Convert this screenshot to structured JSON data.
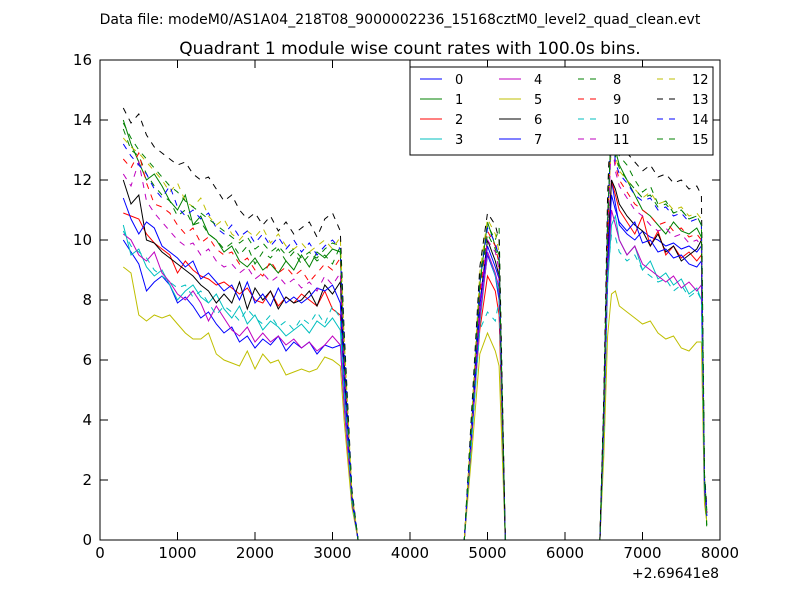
{
  "suptitle": "Data file: modeM0/AS1A04_218T08_9000002236_15168cztM0_level2_quad_clean.evt",
  "chart_data": {
    "type": "line",
    "title": "Quadrant 1 module wise count rates with 100.0s bins.",
    "xlabel": "",
    "ylabel": "",
    "xlim": [
      0,
      8000
    ],
    "ylim": [
      0,
      16
    ],
    "x_offset_label": "+2.69641e8",
    "xticks": [
      0,
      1000,
      2000,
      3000,
      4000,
      5000,
      6000,
      7000,
      8000
    ],
    "yticks": [
      0,
      2,
      4,
      6,
      8,
      10,
      12,
      14,
      16
    ],
    "legend_position": "top-right",
    "legend_columns": 4,
    "x": [
      300,
      400,
      500,
      600,
      700,
      800,
      900,
      1000,
      1100,
      1200,
      1300,
      1400,
      1500,
      1600,
      1700,
      1800,
      1900,
      2000,
      2100,
      2200,
      2300,
      2400,
      2500,
      2600,
      2700,
      2800,
      2900,
      3000,
      3100,
      3150,
      3250,
      3330,
      3400,
      3500,
      4700,
      4800,
      4900,
      5000,
      5100,
      5150,
      5230,
      5300,
      6450,
      6500,
      6550,
      6600,
      6650,
      6700,
      6800,
      6900,
      7000,
      7100,
      7200,
      7300,
      7400,
      7500,
      7600,
      7700,
      7760,
      7800,
      7830
    ],
    "series": [
      {
        "name": "0",
        "color": "#0000ff",
        "dash": "solid",
        "values": [
          10.0,
          9.6,
          9.2,
          8.3,
          8.6,
          8.8,
          8.5,
          7.9,
          8.1,
          7.8,
          7.4,
          7.6,
          7.2,
          6.9,
          7.1,
          6.6,
          6.8,
          6.4,
          6.7,
          6.5,
          6.8,
          6.3,
          6.6,
          6.4,
          6.6,
          6.2,
          6.5,
          6.4,
          6.5,
          4.5,
          1.3,
          0,
          0,
          0,
          0,
          3.5,
          7.5,
          9.5,
          8.8,
          8.0,
          0,
          0,
          0,
          3.5,
          9.0,
          12.0,
          11.2,
          10.5,
          10.2,
          10.0,
          10.3,
          10.1,
          10.0,
          9.8,
          9.9,
          9.7,
          9.8,
          9.6,
          9.8,
          2.0,
          0.8
        ]
      },
      {
        "name": "1",
        "color": "#008000",
        "dash": "solid",
        "values": [
          14.0,
          13.2,
          12.6,
          12.0,
          12.2,
          11.8,
          11.3,
          11.0,
          11.5,
          10.5,
          10.8,
          10.2,
          10.0,
          9.6,
          9.8,
          9.3,
          9.1,
          9.4,
          9.0,
          9.2,
          8.9,
          9.3,
          9.0,
          9.5,
          9.1,
          9.6,
          9.4,
          9.7,
          9.6,
          6.0,
          1.5,
          0,
          0,
          0,
          0,
          4.0,
          8.5,
          10.6,
          9.8,
          9.5,
          0,
          0,
          0,
          4.5,
          10.5,
          14.0,
          13.0,
          12.5,
          12.0,
          11.5,
          11.0,
          10.8,
          10.5,
          10.2,
          10.6,
          10.3,
          10.2,
          10.4,
          10.1,
          2.0,
          0.5
        ]
      },
      {
        "name": "2",
        "color": "#ff0000",
        "dash": "solid",
        "values": [
          10.9,
          10.8,
          10.7,
          10.2,
          9.9,
          9.7,
          9.5,
          8.9,
          9.3,
          9.0,
          8.8,
          8.7,
          8.5,
          8.6,
          8.4,
          8.2,
          8.4,
          8.0,
          7.9,
          8.3,
          7.8,
          8.1,
          7.9,
          8.2,
          8.0,
          7.8,
          8.3,
          7.7,
          7.5,
          5.0,
          1.4,
          0,
          0,
          0,
          0,
          3.8,
          7.0,
          8.8,
          8.3,
          7.5,
          0,
          0,
          0,
          3.8,
          9.5,
          12.0,
          11.5,
          11.0,
          10.6,
          10.2,
          10.8,
          9.8,
          10.3,
          9.5,
          9.8,
          9.4,
          9.6,
          9.3,
          9.5,
          1.8,
          0.9
        ]
      },
      {
        "name": "3",
        "color": "#00bfbf",
        "dash": "solid",
        "values": [
          10.5,
          9.5,
          9.7,
          9.1,
          8.8,
          9.0,
          8.5,
          8.0,
          8.3,
          8.5,
          8.1,
          7.9,
          8.2,
          7.7,
          7.4,
          7.8,
          7.2,
          7.5,
          7.0,
          7.3,
          7.1,
          6.8,
          7.0,
          7.2,
          6.9,
          7.3,
          7.1,
          7.4,
          7.0,
          4.8,
          1.2,
          0,
          0,
          0,
          0,
          3.6,
          7.2,
          9.6,
          8.8,
          8.2,
          0,
          0,
          0,
          3.5,
          8.5,
          10.5,
          10.8,
          10.0,
          9.5,
          9.8,
          9.0,
          9.3,
          8.7,
          8.9,
          8.5,
          8.7,
          8.2,
          8.4,
          8.0,
          1.6,
          0.9
        ]
      },
      {
        "name": "4",
        "color": "#bf00bf",
        "dash": "solid",
        "values": [
          10.2,
          10.0,
          9.5,
          9.3,
          9.6,
          8.9,
          8.6,
          8.2,
          8.0,
          8.3,
          7.9,
          7.3,
          7.8,
          7.4,
          7.0,
          6.8,
          7.1,
          6.6,
          6.9,
          6.6,
          6.8,
          6.5,
          6.7,
          6.4,
          6.6,
          6.3,
          6.5,
          6.8,
          6.5,
          4.5,
          1.2,
          0,
          0,
          0,
          0,
          3.6,
          7.4,
          9.6,
          8.9,
          8.4,
          0,
          0,
          0,
          3.5,
          8.8,
          11.0,
          10.5,
          10.0,
          9.5,
          9.8,
          9.2,
          9.0,
          8.8,
          8.6,
          8.8,
          8.4,
          8.6,
          8.3,
          8.5,
          1.6,
          0.9
        ]
      },
      {
        "name": "5",
        "color": "#bfbf00",
        "dash": "solid",
        "values": [
          9.1,
          8.9,
          7.5,
          7.3,
          7.5,
          7.4,
          7.5,
          7.2,
          6.9,
          6.7,
          6.7,
          6.9,
          6.2,
          6.0,
          5.9,
          5.8,
          6.3,
          5.7,
          6.2,
          5.9,
          6.0,
          5.5,
          5.6,
          5.7,
          5.6,
          5.7,
          6.1,
          6.0,
          5.8,
          4.0,
          1.1,
          0,
          0,
          0,
          0,
          3.0,
          6.2,
          6.9,
          6.3,
          5.8,
          0,
          0,
          0,
          2.8,
          6.8,
          8.2,
          8.3,
          7.8,
          7.6,
          7.4,
          7.2,
          7.3,
          6.9,
          6.7,
          6.8,
          6.4,
          6.3,
          6.6,
          6.6,
          1.2,
          0.6
        ]
      },
      {
        "name": "6",
        "color": "#000000",
        "dash": "solid",
        "values": [
          12.0,
          11.2,
          11.5,
          10.0,
          9.9,
          9.6,
          9.4,
          9.2,
          9.0,
          8.8,
          8.5,
          8.3,
          7.9,
          8.2,
          7.9,
          8.6,
          7.7,
          8.4,
          8.0,
          8.3,
          7.7,
          8.1,
          7.9,
          8.0,
          8.3,
          7.8,
          8.5,
          8.2,
          8.6,
          5.8,
          1.4,
          0,
          0,
          0,
          0,
          3.8,
          7.9,
          10.0,
          9.3,
          8.8,
          0,
          0,
          0,
          4.0,
          9.5,
          12.0,
          11.7,
          11.2,
          10.8,
          10.5,
          10.3,
          9.8,
          10.2,
          9.6,
          9.8,
          9.3,
          9.5,
          9.7,
          10.0,
          1.8,
          0.9
        ]
      },
      {
        "name": "7",
        "color": "#0000ff",
        "dash": "solid",
        "values": [
          11.4,
          10.7,
          10.2,
          10.6,
          10.4,
          9.8,
          9.6,
          9.4,
          9.1,
          9.3,
          8.7,
          8.9,
          8.6,
          8.3,
          8.5,
          8.0,
          8.6,
          7.9,
          8.2,
          7.8,
          8.4,
          7.9,
          8.1,
          7.9,
          8.1,
          8.4,
          8.3,
          8.5,
          7.9,
          5.4,
          1.3,
          0,
          0,
          0,
          0,
          3.7,
          7.8,
          9.8,
          9.1,
          8.7,
          0,
          0,
          0,
          3.9,
          9.2,
          11.5,
          11.0,
          10.6,
          10.3,
          10.6,
          9.9,
          10.0,
          9.6,
          9.7,
          9.4,
          9.5,
          9.2,
          9.1,
          9.3,
          1.7,
          0.8
        ]
      },
      {
        "name": "8",
        "color": "#008000",
        "dash": "dashed",
        "values": [
          13.7,
          13.0,
          12.8,
          12.2,
          11.8,
          11.5,
          11.3,
          10.8,
          11.0,
          10.5,
          10.6,
          10.2,
          10.0,
          9.7,
          9.9,
          9.5,
          9.8,
          9.2,
          9.6,
          9.4,
          9.7,
          9.3,
          9.6,
          9.2,
          9.5,
          9.4,
          9.7,
          9.9,
          9.8,
          6.5,
          1.6,
          0,
          0,
          0,
          0,
          4.2,
          8.8,
          10.5,
          10.0,
          10.4,
          0,
          0,
          0,
          4.5,
          11.0,
          14.5,
          13.3,
          12.8,
          12.5,
          12.0,
          11.6,
          11.8,
          11.2,
          11.3,
          10.9,
          11.0,
          10.7,
          10.8,
          10.5,
          2.1,
          1.0
        ]
      },
      {
        "name": "9",
        "color": "#ff0000",
        "dash": "dashed",
        "values": [
          12.7,
          12.4,
          12.9,
          11.9,
          11.2,
          11.1,
          10.9,
          10.5,
          10.2,
          10.4,
          9.9,
          10.1,
          9.7,
          9.5,
          9.6,
          9.2,
          9.4,
          9.0,
          8.8,
          9.3,
          8.9,
          9.1,
          8.8,
          9.0,
          8.6,
          8.9,
          9.2,
          9.0,
          9.4,
          6.2,
          1.5,
          0,
          0,
          0,
          0,
          4.0,
          8.2,
          10.3,
          9.8,
          9.2,
          0,
          0,
          0,
          4.2,
          10.2,
          13.8,
          12.5,
          12.0,
          11.6,
          11.2,
          11.0,
          10.8,
          10.5,
          10.6,
          10.3,
          10.4,
          10.1,
          10.2,
          10.0,
          2.0,
          1.0
        ]
      },
      {
        "name": "10",
        "color": "#00bfbf",
        "dash": "dashed",
        "values": [
          10.3,
          9.8,
          9.6,
          9.4,
          9.0,
          8.8,
          8.6,
          8.4,
          8.5,
          8.1,
          8.3,
          7.9,
          7.5,
          7.8,
          7.6,
          7.3,
          7.7,
          7.4,
          7.2,
          7.5,
          7.1,
          7.3,
          7.0,
          7.4,
          7.2,
          7.6,
          7.2,
          7.8,
          7.4,
          5.0,
          1.3,
          0,
          0,
          0,
          0,
          3.5,
          7.0,
          7.6,
          7.3,
          8.0,
          0,
          0,
          0,
          3.4,
          8.8,
          10.2,
          10.1,
          9.6,
          9.3,
          9.5,
          9.0,
          8.8,
          8.6,
          8.7,
          8.3,
          8.5,
          8.1,
          8.3,
          8.0,
          1.6,
          0.8
        ]
      },
      {
        "name": "11",
        "color": "#bf00bf",
        "dash": "dashed",
        "values": [
          12.2,
          11.8,
          12.6,
          11.3,
          10.9,
          10.6,
          10.3,
          10.0,
          9.8,
          9.9,
          9.5,
          9.7,
          9.3,
          9.1,
          9.2,
          8.9,
          9.1,
          8.7,
          8.9,
          8.6,
          8.8,
          8.5,
          8.7,
          8.4,
          8.6,
          8.3,
          8.8,
          8.5,
          8.9,
          6.0,
          1.4,
          0,
          0,
          0,
          0,
          3.9,
          8.0,
          10.0,
          9.6,
          9.0,
          0,
          0,
          0,
          4.1,
          10.0,
          13.5,
          12.3,
          11.8,
          11.4,
          11.0,
          10.8,
          10.5,
          10.3,
          10.4,
          10.1,
          10.2,
          9.9,
          10.0,
          9.8,
          1.9,
          0.9
        ]
      },
      {
        "name": "12",
        "color": "#bfbf00",
        "dash": "dashed",
        "values": [
          13.4,
          13.1,
          12.9,
          12.6,
          12.3,
          12.0,
          11.6,
          11.9,
          11.3,
          11.1,
          11.4,
          10.8,
          10.5,
          10.7,
          10.2,
          10.0,
          10.3,
          10.1,
          10.4,
          9.9,
          10.2,
          9.8,
          9.7,
          9.9,
          9.6,
          9.8,
          10.0,
          9.7,
          10.1,
          6.8,
          1.6,
          0,
          0,
          0,
          0,
          4.3,
          8.9,
          10.7,
          10.2,
          9.6,
          0,
          0,
          0,
          4.6,
          11.0,
          13.2,
          12.8,
          12.3,
          12.0,
          11.7,
          11.4,
          11.6,
          11.2,
          11.3,
          11.0,
          11.1,
          10.8,
          10.9,
          10.7,
          2.1,
          1.0
        ]
      },
      {
        "name": "13",
        "color": "#000000",
        "dash": "dashed",
        "values": [
          14.4,
          13.9,
          14.2,
          13.5,
          13.1,
          12.9,
          12.7,
          12.5,
          12.6,
          12.2,
          12.0,
          12.1,
          11.7,
          11.3,
          11.5,
          11.0,
          10.7,
          10.9,
          10.5,
          10.8,
          10.3,
          10.6,
          10.2,
          10.4,
          10.6,
          10.1,
          10.7,
          10.9,
          10.3,
          7.0,
          1.7,
          0,
          0,
          0,
          0,
          4.5,
          9.1,
          10.9,
          10.5,
          10.0,
          0,
          0,
          0,
          4.8,
          11.5,
          15.0,
          13.6,
          13.2,
          12.9,
          12.6,
          12.3,
          12.5,
          12.1,
          12.2,
          11.9,
          12.0,
          11.7,
          11.8,
          11.5,
          2.2,
          1.1
        ]
      },
      {
        "name": "14",
        "color": "#0000ff",
        "dash": "dashed",
        "values": [
          13.2,
          12.8,
          12.5,
          12.2,
          11.7,
          11.4,
          11.8,
          11.1,
          10.8,
          11.0,
          10.7,
          10.9,
          10.4,
          10.2,
          10.5,
          10.1,
          10.3,
          9.9,
          10.2,
          9.8,
          10.1,
          9.7,
          10.0,
          9.6,
          9.9,
          9.5,
          9.8,
          10.0,
          9.7,
          6.5,
          1.6,
          0,
          0,
          0,
          0,
          4.1,
          8.6,
          10.4,
          9.9,
          9.4,
          0,
          0,
          0,
          4.4,
          10.6,
          13.9,
          12.6,
          12.2,
          11.9,
          11.5,
          11.3,
          11.4,
          11.0,
          11.1,
          10.8,
          10.9,
          10.6,
          10.7,
          10.5,
          2.0,
          1.0
        ]
      },
      {
        "name": "15",
        "color": "#008000",
        "dash": "dashed",
        "values": [
          13.9,
          13.4,
          13.0,
          12.7,
          12.4,
          12.1,
          11.8,
          11.6,
          11.3,
          11.1,
          10.9,
          10.7,
          10.5,
          10.3,
          10.1,
          9.9,
          10.1,
          9.7,
          9.9,
          9.6,
          9.8,
          9.5,
          9.7,
          9.4,
          9.6,
          9.3,
          9.5,
          9.2,
          9.8,
          6.4,
          1.5,
          0,
          0,
          0,
          0,
          4.1,
          8.5,
          10.2,
          9.7,
          9.3,
          0,
          0,
          0,
          4.3,
          10.4,
          14.2,
          12.8,
          12.4,
          12.0,
          11.7,
          11.4,
          11.5,
          11.1,
          11.2,
          10.9,
          11.0,
          10.7,
          10.8,
          10.5,
          2.0,
          0.4
        ]
      }
    ]
  }
}
